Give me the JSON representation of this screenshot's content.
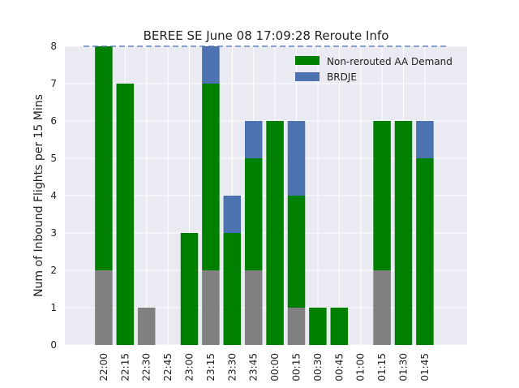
{
  "chart_data": {
    "type": "bar",
    "title": "BEREE SE June 08 17:09:28 Reroute Info",
    "xlabel": "",
    "ylabel": "Num of Inbound Flights per 15 Mins",
    "ylim": [
      0,
      8
    ],
    "yticks": [
      "0",
      "1",
      "2",
      "3",
      "4",
      "5",
      "6",
      "7",
      "8"
    ],
    "grid": true,
    "stacked": true,
    "legend_position": "top-right",
    "categories": [
      "22:00",
      "22:15",
      "22:30",
      "22:45",
      "23:00",
      "23:15",
      "23:30",
      "23:45",
      "00:00",
      "00:15",
      "00:30",
      "00:45",
      "01:00",
      "01:15",
      "01:30",
      "01:45"
    ],
    "series": [
      {
        "name": "",
        "color": "#808080",
        "values": [
          2,
          0,
          1,
          0,
          0,
          2,
          0,
          2,
          0,
          1,
          0,
          0,
          0,
          2,
          0,
          0
        ]
      },
      {
        "name": "Non-rerouted AA Demand",
        "color": "#008000",
        "values": [
          6,
          7,
          0,
          0,
          3,
          5,
          3,
          3,
          6,
          3,
          1,
          1,
          0,
          4,
          6,
          5
        ]
      },
      {
        "name": "BRDJE",
        "color": "#4c72b0",
        "values": [
          0,
          0,
          0,
          0,
          0,
          1,
          1,
          1,
          0,
          2,
          0,
          0,
          0,
          0,
          0,
          1
        ]
      }
    ],
    "reference_line": {
      "value": 8,
      "style": "dashed",
      "color": "#4c72b0"
    },
    "colors": {
      "plot_background": "#eaeaf2",
      "grid": "#ffffff"
    }
  }
}
